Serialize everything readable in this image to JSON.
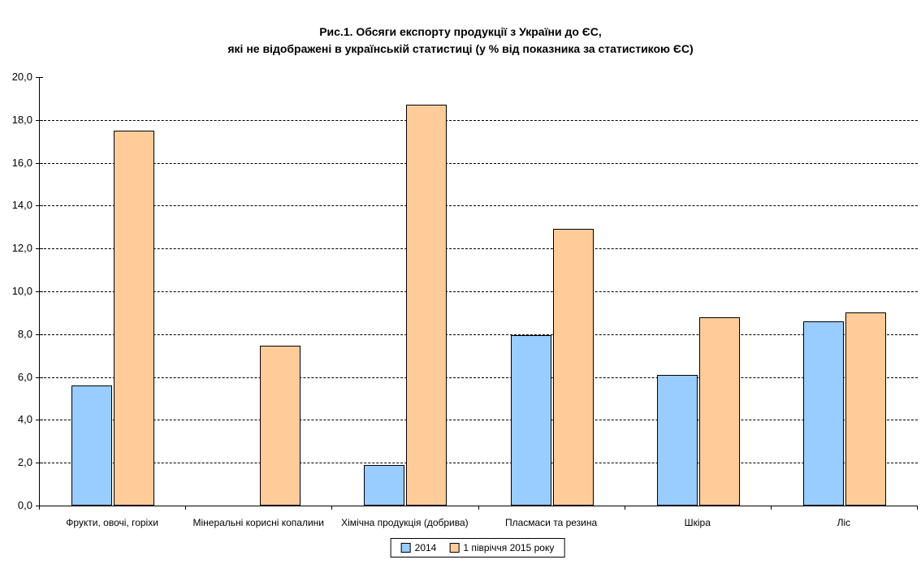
{
  "chart_data": {
    "type": "bar",
    "title_line1": "Рис.1. Обсяги експорту продукції з України до ЄС,",
    "title_line2": "які не відображені в українській статистиці (у % від показника за статистикою ЄС)",
    "categories": [
      "Фрукти, овочі, горіхи",
      "Мінеральні корисні копалини",
      "Хімічна продукція (добрива)",
      "Пласмаси та резина",
      "Шкіра",
      "Ліс"
    ],
    "series": [
      {
        "name": "2014",
        "color": "#99CCFF",
        "values": [
          5.6,
          0,
          1.9,
          7.95,
          6.1,
          8.6
        ]
      },
      {
        "name": "1 півріччя 2015 року",
        "color": "#FFCC99",
        "values": [
          17.5,
          7.45,
          18.7,
          12.9,
          8.8,
          9.0
        ]
      }
    ],
    "ylim": [
      0,
      20
    ],
    "ytick_step": 2,
    "decimal_separator": ",",
    "grid": "horizontal-dashed",
    "legend_position": "bottom-center",
    "bar_border_color": "#000000",
    "axis_color": "#000000",
    "background_color": "#FFFFFF"
  }
}
